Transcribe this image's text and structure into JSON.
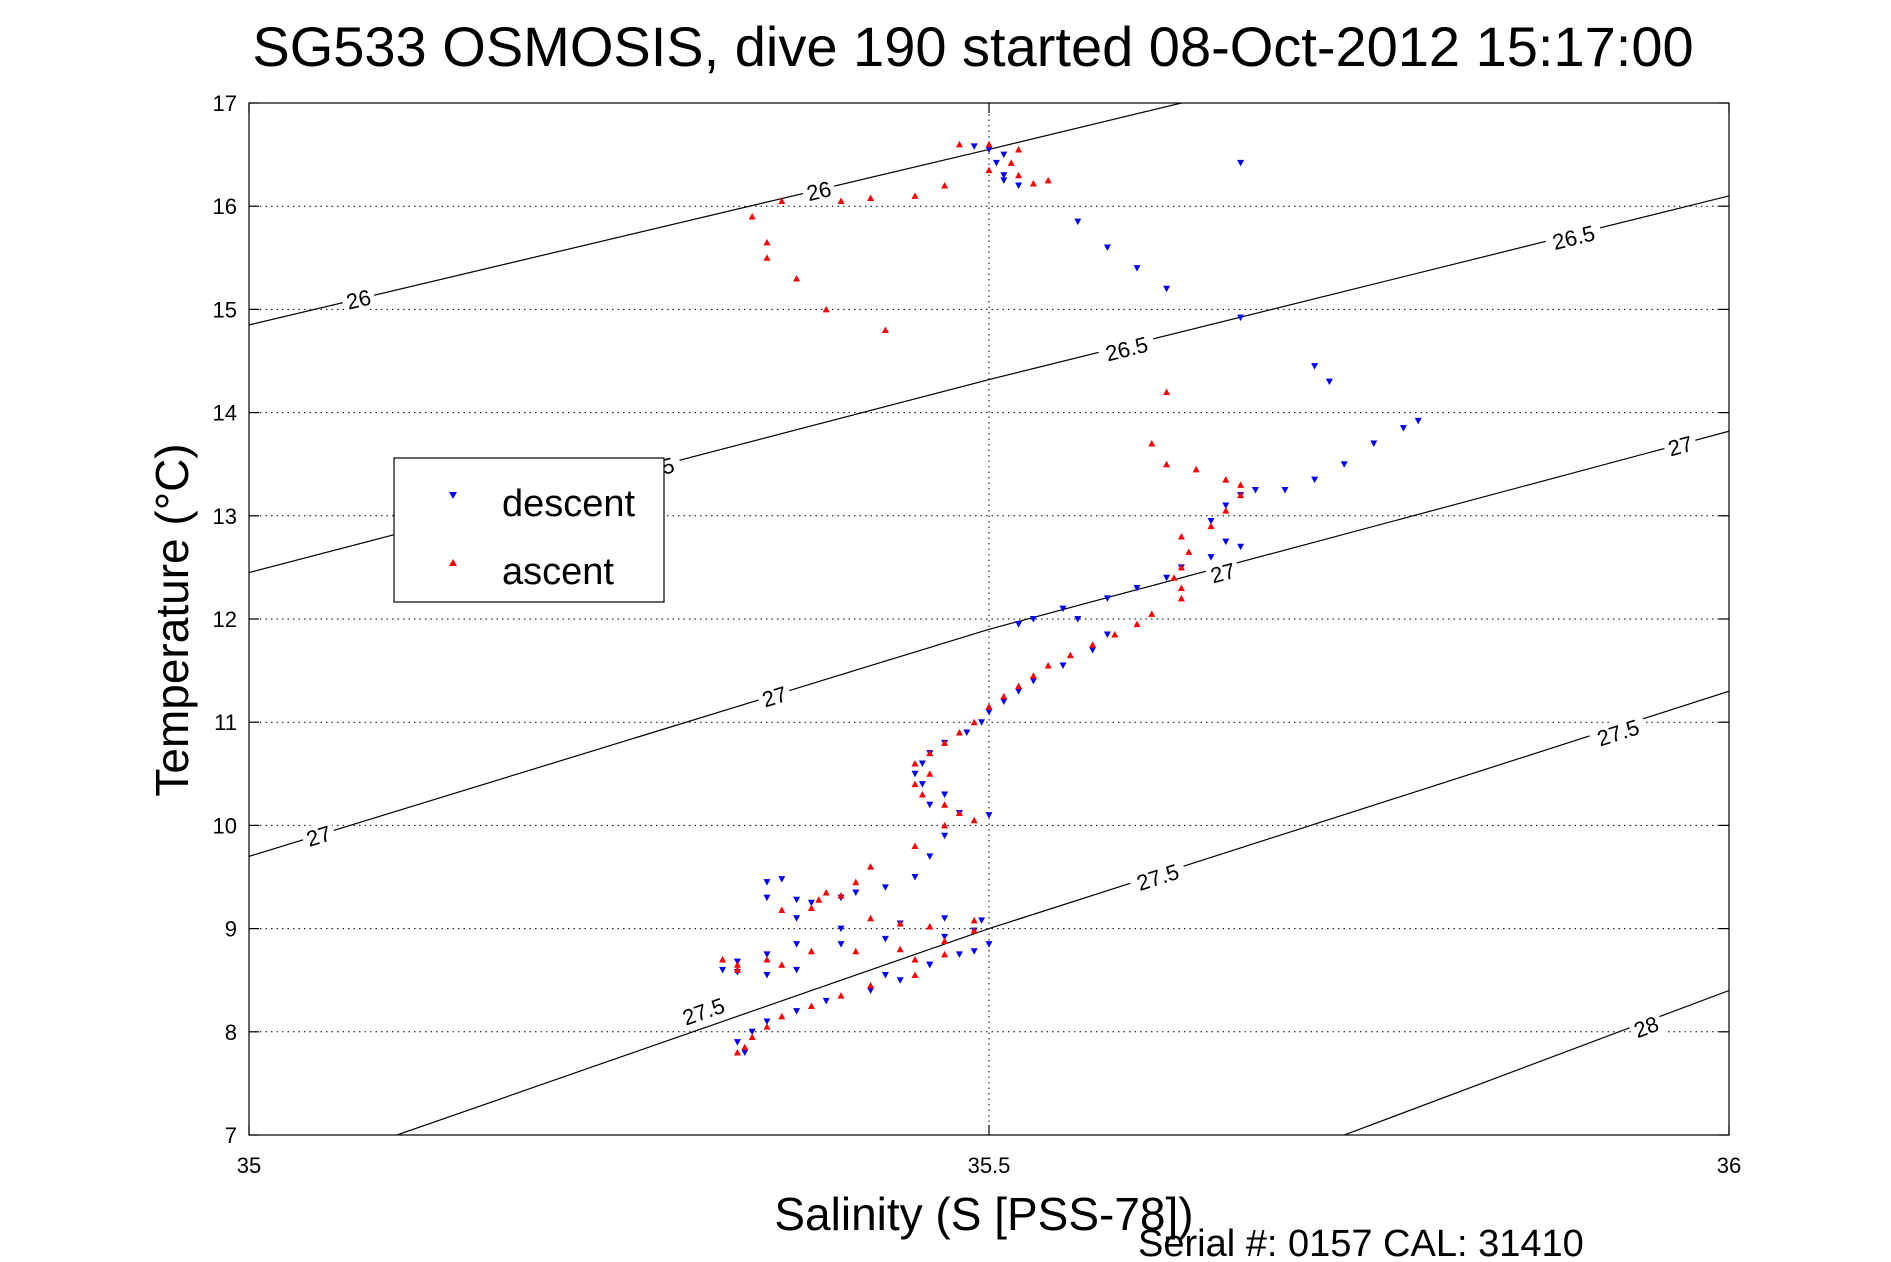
{
  "chart_data": {
    "type": "scatter",
    "title": "SG533 OSMOSIS, dive 190 started 08-Oct-2012 15:17:00",
    "xlabel": "Salinity (S [PSS-78])",
    "ylabel": "Temperature (°C)",
    "xlim": [
      35,
      36
    ],
    "ylim": [
      7,
      17
    ],
    "xticks": [
      35,
      35.5,
      36
    ],
    "xtick_labels": [
      "35",
      "35.5",
      "36"
    ],
    "yticks": [
      7,
      8,
      9,
      10,
      11,
      12,
      13,
      14,
      15,
      16,
      17
    ],
    "ytick_labels": [
      "7",
      "8",
      "9",
      "10",
      "11",
      "12",
      "13",
      "14",
      "15",
      "16",
      "17"
    ],
    "grid": true,
    "legend_position": "left-middle",
    "footer": "Serial #: 0157  CAL: 31410",
    "density_contours": [
      {
        "sigma": 26,
        "points": [
          [
            35.0,
            14.85
          ],
          [
            35.5,
            16.55
          ],
          [
            35.63,
            17.0
          ]
        ],
        "labels": [
          {
            "text": "26",
            "x": 35.074,
            "y": 15.1
          },
          {
            "text": "26",
            "x": 35.385,
            "y": 16.15
          }
        ]
      },
      {
        "sigma": 26.5,
        "points": [
          [
            35.0,
            12.45
          ],
          [
            35.5,
            14.32
          ],
          [
            36.0,
            16.1
          ]
        ],
        "labels": [
          {
            "text": "26.5",
            "x": 35.273,
            "y": 13.45
          },
          {
            "text": "26.5",
            "x": 35.593,
            "y": 14.62
          },
          {
            "text": "26.5",
            "x": 35.895,
            "y": 15.7
          }
        ]
      },
      {
        "sigma": 27,
        "points": [
          [
            35.0,
            9.7
          ],
          [
            35.5,
            11.9
          ],
          [
            36.0,
            13.82
          ]
        ],
        "labels": [
          {
            "text": "27",
            "x": 35.047,
            "y": 9.9
          },
          {
            "text": "27",
            "x": 35.355,
            "y": 11.25
          },
          {
            "text": "27",
            "x": 35.658,
            "y": 12.45
          },
          {
            "text": "27",
            "x": 35.967,
            "y": 13.68
          }
        ]
      },
      {
        "sigma": 27.5,
        "points": [
          [
            35.1,
            7.0
          ],
          [
            35.5,
            9.0
          ],
          [
            36.0,
            11.3
          ]
        ],
        "labels": [
          {
            "text": "27.5",
            "x": 35.307,
            "y": 8.2
          },
          {
            "text": "27.5",
            "x": 35.614,
            "y": 9.5
          },
          {
            "text": "27.5",
            "x": 35.925,
            "y": 10.9
          }
        ]
      },
      {
        "sigma": 28,
        "points": [
          [
            35.74,
            7.0
          ],
          [
            36.0,
            8.4
          ]
        ],
        "labels": [
          {
            "text": "28",
            "x": 35.944,
            "y": 8.05
          }
        ]
      }
    ],
    "series": [
      {
        "name": "descent",
        "color": "#0000ff",
        "marker": "triangle-down",
        "values": [
          [
            35.49,
            16.58
          ],
          [
            35.5,
            16.55
          ],
          [
            35.51,
            16.5
          ],
          [
            35.505,
            16.42
          ],
          [
            35.51,
            16.3
          ],
          [
            35.51,
            16.25
          ],
          [
            35.52,
            16.2
          ],
          [
            35.56,
            15.85
          ],
          [
            35.58,
            15.6
          ],
          [
            35.6,
            15.4
          ],
          [
            35.62,
            15.2
          ],
          [
            35.67,
            14.92
          ],
          [
            35.67,
            16.42
          ],
          [
            35.72,
            14.45
          ],
          [
            35.73,
            14.3
          ],
          [
            35.79,
            13.92
          ],
          [
            35.78,
            13.85
          ],
          [
            35.76,
            13.7
          ],
          [
            35.74,
            13.5
          ],
          [
            35.72,
            13.35
          ],
          [
            35.7,
            13.25
          ],
          [
            35.68,
            13.25
          ],
          [
            35.67,
            13.2
          ],
          [
            35.66,
            13.1
          ],
          [
            35.65,
            12.95
          ],
          [
            35.66,
            12.75
          ],
          [
            35.67,
            12.7
          ],
          [
            35.65,
            12.6
          ],
          [
            35.63,
            12.5
          ],
          [
            35.62,
            12.4
          ],
          [
            35.6,
            12.3
          ],
          [
            35.58,
            12.2
          ],
          [
            35.55,
            12.1
          ],
          [
            35.53,
            12.0
          ],
          [
            35.52,
            11.95
          ],
          [
            35.56,
            12.0
          ],
          [
            35.58,
            11.85
          ],
          [
            35.57,
            11.7
          ],
          [
            35.55,
            11.55
          ],
          [
            35.53,
            11.4
          ],
          [
            35.52,
            11.3
          ],
          [
            35.51,
            11.2
          ],
          [
            35.5,
            11.1
          ],
          [
            35.495,
            11.0
          ],
          [
            35.485,
            10.9
          ],
          [
            35.47,
            10.8
          ],
          [
            35.46,
            10.7
          ],
          [
            35.455,
            10.6
          ],
          [
            35.45,
            10.5
          ],
          [
            35.455,
            10.4
          ],
          [
            35.47,
            10.3
          ],
          [
            35.46,
            10.2
          ],
          [
            35.48,
            10.12
          ],
          [
            35.5,
            10.1
          ],
          [
            35.47,
            9.9
          ],
          [
            35.46,
            9.7
          ],
          [
            35.45,
            9.5
          ],
          [
            35.43,
            9.4
          ],
          [
            35.41,
            9.35
          ],
          [
            35.4,
            9.3
          ],
          [
            35.38,
            9.25
          ],
          [
            35.37,
            9.28
          ],
          [
            35.36,
            9.48
          ],
          [
            35.35,
            9.45
          ],
          [
            35.35,
            9.3
          ],
          [
            35.37,
            9.1
          ],
          [
            35.4,
            9.0
          ],
          [
            35.44,
            9.05
          ],
          [
            35.47,
            9.1
          ],
          [
            35.495,
            9.08
          ],
          [
            35.49,
            8.98
          ],
          [
            35.47,
            8.92
          ],
          [
            35.43,
            8.9
          ],
          [
            35.4,
            8.85
          ],
          [
            35.37,
            8.85
          ],
          [
            35.35,
            8.75
          ],
          [
            35.33,
            8.68
          ],
          [
            35.32,
            8.6
          ],
          [
            35.33,
            8.58
          ],
          [
            35.35,
            8.55
          ],
          [
            35.37,
            8.6
          ],
          [
            35.43,
            8.55
          ],
          [
            35.46,
            8.65
          ],
          [
            35.48,
            8.75
          ],
          [
            35.5,
            8.85
          ],
          [
            35.49,
            8.78
          ],
          [
            35.46,
            8.65
          ],
          [
            35.44,
            8.5
          ],
          [
            35.42,
            8.4
          ],
          [
            35.39,
            8.3
          ],
          [
            35.37,
            8.2
          ],
          [
            35.35,
            8.1
          ],
          [
            35.34,
            8.0
          ],
          [
            35.33,
            7.9
          ],
          [
            35.335,
            7.8
          ]
        ]
      },
      {
        "name": "ascent",
        "color": "#ff0000",
        "marker": "triangle-up",
        "values": [
          [
            35.48,
            16.6
          ],
          [
            35.5,
            16.6
          ],
          [
            35.52,
            16.55
          ],
          [
            35.515,
            16.42
          ],
          [
            35.5,
            16.35
          ],
          [
            35.52,
            16.3
          ],
          [
            35.54,
            16.25
          ],
          [
            35.53,
            16.22
          ],
          [
            35.47,
            16.2
          ],
          [
            35.45,
            16.1
          ],
          [
            35.42,
            16.08
          ],
          [
            35.4,
            16.05
          ],
          [
            35.36,
            16.05
          ],
          [
            35.34,
            15.9
          ],
          [
            35.35,
            15.65
          ],
          [
            35.35,
            15.5
          ],
          [
            35.37,
            15.3
          ],
          [
            35.39,
            15.0
          ],
          [
            35.43,
            14.8
          ],
          [
            35.62,
            14.2
          ],
          [
            35.61,
            13.7
          ],
          [
            35.62,
            13.5
          ],
          [
            35.64,
            13.45
          ],
          [
            35.66,
            13.35
          ],
          [
            35.67,
            13.3
          ],
          [
            35.67,
            13.2
          ],
          [
            35.66,
            13.05
          ],
          [
            35.65,
            12.9
          ],
          [
            35.63,
            12.8
          ],
          [
            35.635,
            12.65
          ],
          [
            35.63,
            12.5
          ],
          [
            35.625,
            12.4
          ],
          [
            35.63,
            12.3
          ],
          [
            35.63,
            12.2
          ],
          [
            35.61,
            12.05
          ],
          [
            35.6,
            11.95
          ],
          [
            35.585,
            11.85
          ],
          [
            35.57,
            11.75
          ],
          [
            35.555,
            11.65
          ],
          [
            35.54,
            11.55
          ],
          [
            35.53,
            11.45
          ],
          [
            35.52,
            11.35
          ],
          [
            35.51,
            11.25
          ],
          [
            35.5,
            11.15
          ],
          [
            35.49,
            11.0
          ],
          [
            35.48,
            10.9
          ],
          [
            35.47,
            10.8
          ],
          [
            35.46,
            10.7
          ],
          [
            35.45,
            10.6
          ],
          [
            35.46,
            10.5
          ],
          [
            35.45,
            10.4
          ],
          [
            35.455,
            10.3
          ],
          [
            35.47,
            10.2
          ],
          [
            35.48,
            10.12
          ],
          [
            35.49,
            10.05
          ],
          [
            35.47,
            10.0
          ],
          [
            35.45,
            9.8
          ],
          [
            35.42,
            9.6
          ],
          [
            35.41,
            9.45
          ],
          [
            35.39,
            9.35
          ],
          [
            35.38,
            9.2
          ],
          [
            35.36,
            9.18
          ],
          [
            35.385,
            9.28
          ],
          [
            35.4,
            9.32
          ],
          [
            35.42,
            9.1
          ],
          [
            35.44,
            9.05
          ],
          [
            35.46,
            9.02
          ],
          [
            35.49,
            9.08
          ],
          [
            35.49,
            8.98
          ],
          [
            35.47,
            8.88
          ],
          [
            35.44,
            8.8
          ],
          [
            35.41,
            8.78
          ],
          [
            35.38,
            8.78
          ],
          [
            35.35,
            8.7
          ],
          [
            35.33,
            8.65
          ],
          [
            35.32,
            8.7
          ],
          [
            35.33,
            8.6
          ],
          [
            35.36,
            8.65
          ],
          [
            35.45,
            8.7
          ],
          [
            35.47,
            8.75
          ],
          [
            35.45,
            8.55
          ],
          [
            35.42,
            8.45
          ],
          [
            35.4,
            8.35
          ],
          [
            35.38,
            8.25
          ],
          [
            35.36,
            8.15
          ],
          [
            35.35,
            8.05
          ],
          [
            35.34,
            7.95
          ],
          [
            35.335,
            7.85
          ],
          [
            35.33,
            7.8
          ]
        ]
      }
    ]
  }
}
